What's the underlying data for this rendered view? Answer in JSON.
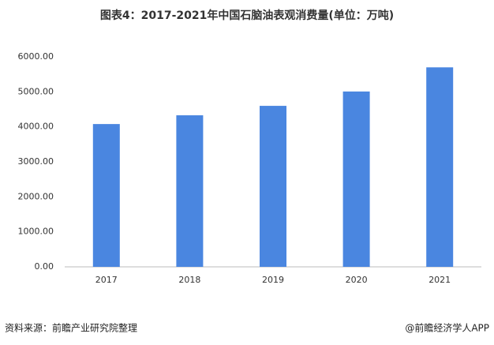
{
  "chart_data": {
    "type": "bar",
    "title": "图表4：2017-2021年中国石脑油表观消费量(单位：万吨)",
    "categories": [
      "2017",
      "2018",
      "2019",
      "2020",
      "2021"
    ],
    "values": [
      4080,
      4330,
      4600,
      5010,
      5700
    ],
    "color": "#4a86e0",
    "ylim": [
      0,
      6000
    ],
    "yticks": [
      {
        "value": 0,
        "label": "0.00"
      },
      {
        "value": 1000,
        "label": "1000.00"
      },
      {
        "value": 2000,
        "label": "2000.00"
      },
      {
        "value": 3000,
        "label": "3000.00"
      },
      {
        "value": 4000,
        "label": "4000.00"
      },
      {
        "value": 5000,
        "label": "5000.00"
      },
      {
        "value": 6000,
        "label": "6000.00"
      }
    ],
    "grid": false
  },
  "footer": {
    "source": "资料来源：前瞻产业研究院整理",
    "credit": "@前瞻经济学人APP"
  }
}
